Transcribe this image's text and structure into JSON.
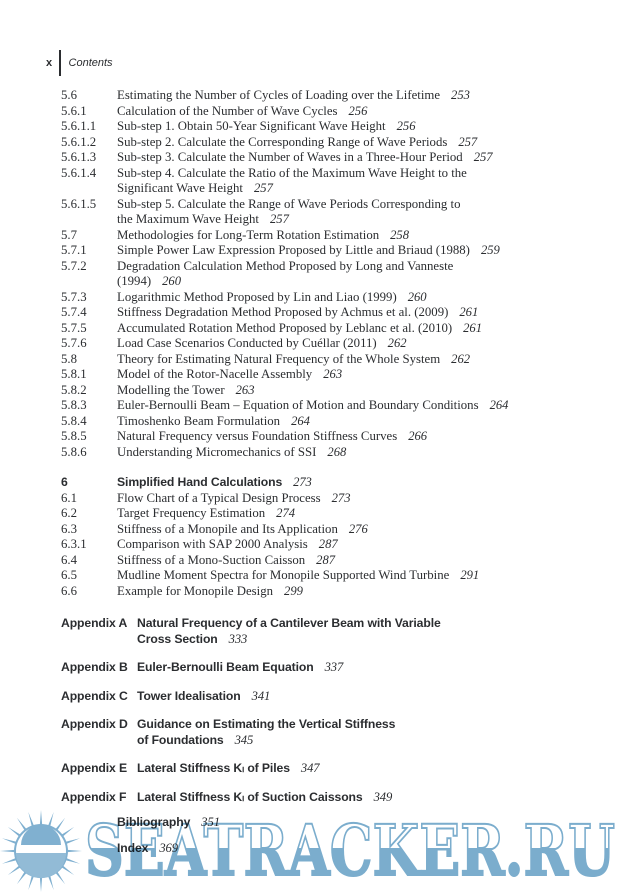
{
  "header": {
    "folio": "x",
    "running_head": "Contents"
  },
  "toc": {
    "entries": [
      {
        "num": "5.6",
        "level": "section",
        "lines": [
          "Estimating the Number of Cycles of Loading over the Lifetime"
        ],
        "page": "253"
      },
      {
        "num": "5.6.1",
        "level": "section",
        "lines": [
          "Calculation of the Number of Wave Cycles"
        ],
        "page": "256"
      },
      {
        "num": "5.6.1.1",
        "level": "section",
        "lines": [
          "Sub-step 1. Obtain 50-Year Significant Wave Height"
        ],
        "page": "256"
      },
      {
        "num": "5.6.1.2",
        "level": "section",
        "lines": [
          "Sub-step 2. Calculate the Corresponding Range of Wave Periods"
        ],
        "page": "257"
      },
      {
        "num": "5.6.1.3",
        "level": "section",
        "lines": [
          "Sub-step 3. Calculate the Number of Waves in a Three-Hour Period"
        ],
        "page": "257"
      },
      {
        "num": "5.6.1.4",
        "level": "section",
        "lines": [
          "Sub-step 4. Calculate the Ratio of the Maximum Wave Height to the",
          "Significant Wave Height"
        ],
        "page": "257"
      },
      {
        "num": "5.6.1.5",
        "level": "section",
        "lines": [
          "Sub-step 5. Calculate the Range of Wave Periods Corresponding to",
          "the Maximum Wave Height"
        ],
        "page": "257"
      },
      {
        "num": "5.7",
        "level": "section",
        "lines": [
          "Methodologies for Long-Term Rotation Estimation"
        ],
        "page": "258"
      },
      {
        "num": "5.7.1",
        "level": "section",
        "lines": [
          "Simple Power Law Expression Proposed by Little and Briaud (1988)"
        ],
        "page": "259"
      },
      {
        "num": "5.7.2",
        "level": "section",
        "lines": [
          "Degradation Calculation Method Proposed by Long and Vanneste",
          "(1994)"
        ],
        "page": "260"
      },
      {
        "num": "5.7.3",
        "level": "section",
        "lines": [
          "Logarithmic Method Proposed by Lin and Liao (1999)"
        ],
        "page": "260"
      },
      {
        "num": "5.7.4",
        "level": "section",
        "lines": [
          "Stiffness Degradation Method Proposed by Achmus et al. (2009)"
        ],
        "page": "261"
      },
      {
        "num": "5.7.5",
        "level": "section",
        "lines": [
          "Accumulated Rotation Method Proposed by Leblanc et al. (2010)"
        ],
        "page": "261"
      },
      {
        "num": "5.7.6",
        "level": "section",
        "lines": [
          "Load Case Scenarios Conducted by Cuéllar (2011)"
        ],
        "page": "262"
      },
      {
        "num": "5.8",
        "level": "section",
        "lines": [
          "Theory for Estimating Natural Frequency of the Whole System"
        ],
        "page": "262"
      },
      {
        "num": "5.8.1",
        "level": "section",
        "lines": [
          "Model of the Rotor-Nacelle Assembly"
        ],
        "page": "263"
      },
      {
        "num": "5.8.2",
        "level": "section",
        "lines": [
          "Modelling the Tower"
        ],
        "page": "263"
      },
      {
        "num": "5.8.3",
        "level": "section",
        "lines": [
          "Euler-Bernoulli Beam – Equation of Motion and Boundary Conditions"
        ],
        "page": "264"
      },
      {
        "num": "5.8.4",
        "level": "section",
        "lines": [
          "Timoshenko Beam Formulation"
        ],
        "page": "264"
      },
      {
        "num": "5.8.5",
        "level": "section",
        "lines": [
          "Natural Frequency versus Foundation Stiffness Curves"
        ],
        "page": "266"
      },
      {
        "num": "5.8.6",
        "level": "section",
        "lines": [
          "Understanding Micromechanics of SSI"
        ],
        "page": "268"
      },
      {
        "num": "6",
        "level": "chapter",
        "lines": [
          "Simplified Hand Calculations"
        ],
        "page": "273"
      },
      {
        "num": "6.1",
        "level": "section",
        "lines": [
          "Flow Chart of a Typical Design Process"
        ],
        "page": "273"
      },
      {
        "num": "6.2",
        "level": "section",
        "lines": [
          "Target Frequency Estimation"
        ],
        "page": "274"
      },
      {
        "num": "6.3",
        "level": "section",
        "lines": [
          "Stiffness of a Monopile and Its Application"
        ],
        "page": "276"
      },
      {
        "num": "6.3.1",
        "level": "section",
        "lines": [
          "Comparison with SAP 2000 Analysis"
        ],
        "page": "287"
      },
      {
        "num": "6.4",
        "level": "section",
        "lines": [
          "Stiffness of a Mono-Suction Caisson"
        ],
        "page": "287"
      },
      {
        "num": "6.5",
        "level": "section",
        "lines": [
          "Mudline Moment Spectra for Monopile Supported Wind Turbine"
        ],
        "page": "291"
      },
      {
        "num": "6.6",
        "level": "section",
        "lines": [
          "Example for Monopile Design"
        ],
        "page": "299"
      },
      {
        "num": "Appendix A",
        "level": "appendix",
        "lines": [
          "Natural Frequency of a Cantilever Beam with Variable",
          "Cross Section"
        ],
        "page": "333"
      },
      {
        "num": "Appendix B",
        "level": "appendix",
        "lines": [
          "Euler-Bernoulli Beam Equation"
        ],
        "page": "337"
      },
      {
        "num": "Appendix C",
        "level": "appendix",
        "lines": [
          "Tower Idealisation"
        ],
        "page": "341"
      },
      {
        "num": "Appendix D",
        "level": "appendix",
        "lines": [
          "Guidance on Estimating the Vertical Stiffness",
          "of Foundations"
        ],
        "page": "345"
      },
      {
        "num": "Appendix E",
        "level": "appendix",
        "lines": [
          "Lateral Stiffness Kₗ of Piles"
        ],
        "page": "347"
      },
      {
        "num": "Appendix F",
        "level": "appendix",
        "lines": [
          "Lateral Stiffness Kₗ of Suction Caissons"
        ],
        "page": "349"
      },
      {
        "num": "",
        "level": "backmatter",
        "lines": [
          "Bibliography"
        ],
        "page": "351"
      },
      {
        "num": "",
        "level": "backmatter",
        "lines": [
          "Index"
        ],
        "page": "369"
      }
    ]
  },
  "watermark": {
    "text": "SEATRACKER.RU",
    "logo": "sun-logo",
    "color": "#74a9cb",
    "color_light": "#8cb8d4"
  }
}
